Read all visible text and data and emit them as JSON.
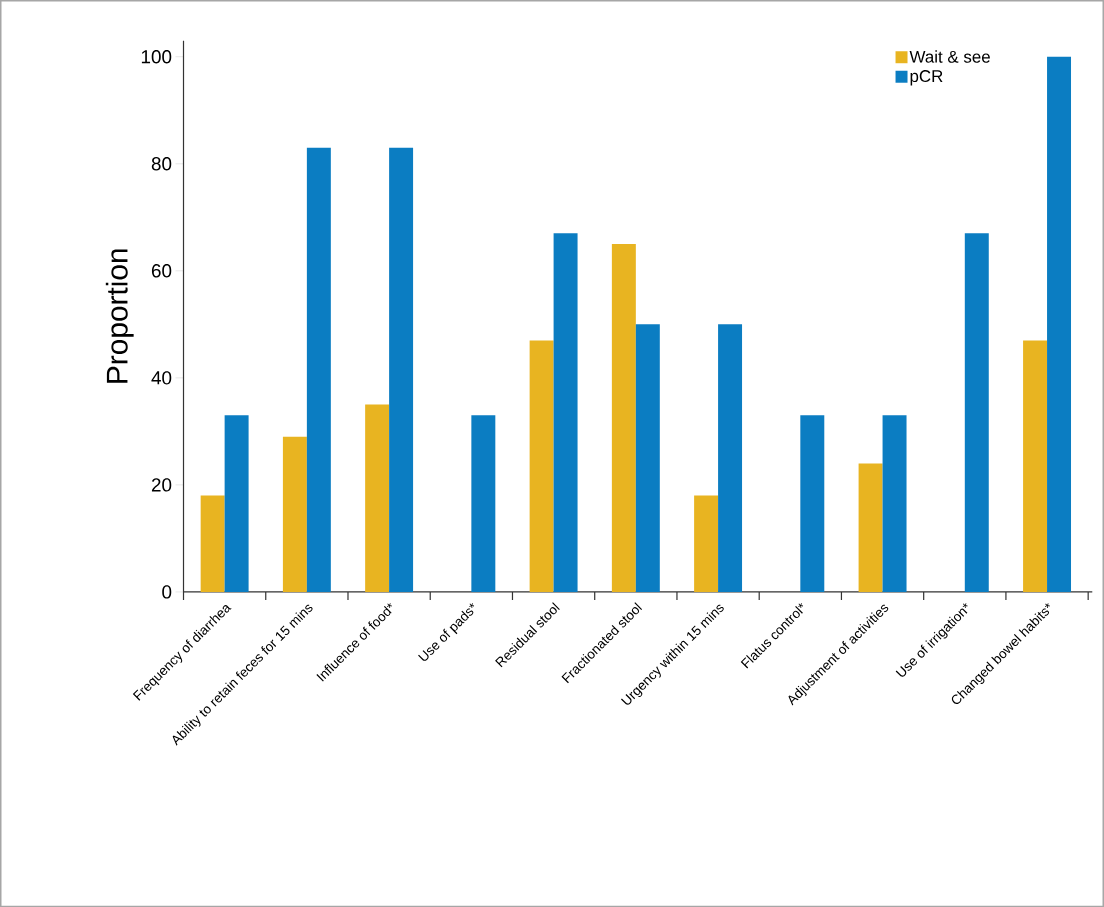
{
  "chart_data": {
    "type": "bar",
    "ylabel": "Proportion",
    "categories": [
      "Frequency of diarrhea",
      "Ability to retain feces for 15 mins",
      "Influence of food*",
      "Use of pads*",
      "Residual stool",
      "Fractionated stool",
      "Urgency within 15 mins",
      "Flatus control*",
      "Adjustment of activities",
      "Use of irrigation*",
      "Changed bowel habits*"
    ],
    "series": [
      {
        "name": "Wait & see",
        "color": "#e8b421",
        "values": [
          18,
          29,
          35,
          0,
          47,
          65,
          18,
          0,
          24,
          0,
          47
        ]
      },
      {
        "name": "pCR",
        "color": "#0b7dc2",
        "values": [
          33,
          83,
          83,
          33,
          67,
          50,
          50,
          33,
          33,
          67,
          100
        ]
      }
    ],
    "ylim": [
      0,
      103
    ],
    "yticks": [
      0,
      20,
      40,
      60,
      80,
      100
    ],
    "legend": "top right",
    "grid": false
  }
}
